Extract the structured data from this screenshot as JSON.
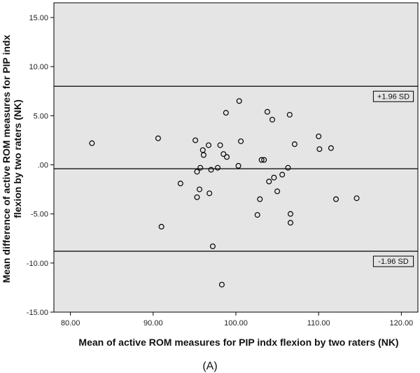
{
  "chart_data": {
    "type": "scatter",
    "xlabel": "Mean of active ROM measures for PIP indx flexion by two raters (NK)",
    "ylabel_lines": [
      "Mean difference of active ROM measures for PIP indx",
      "flexion by two raters (NK)"
    ],
    "xlim": [
      78,
      122
    ],
    "ylim": [
      -15,
      16.5
    ],
    "x_ticks": [
      80,
      90,
      100,
      110,
      120
    ],
    "x_tick_labels": [
      "80.00",
      "90.00",
      "100.00",
      "110.00",
      "120.00"
    ],
    "y_ticks": [
      -15,
      -10,
      -5,
      0,
      5,
      10,
      15
    ],
    "y_tick_labels": [
      "-15.00",
      "-10.00",
      "-5.00",
      ".00",
      "5.00",
      "10.00",
      "15.00"
    ],
    "grid": false,
    "reference_lines": [
      {
        "y": 8.0,
        "label": "+1.96 SD"
      },
      {
        "y": -0.4,
        "label": ""
      },
      {
        "y": -8.8,
        "label": "-1.96 SD"
      }
    ],
    "points": [
      {
        "x": 82.6,
        "y": 2.2
      },
      {
        "x": 90.6,
        "y": 2.7
      },
      {
        "x": 91.0,
        "y": -6.3
      },
      {
        "x": 93.3,
        "y": -1.9
      },
      {
        "x": 95.1,
        "y": 2.5
      },
      {
        "x": 95.3,
        "y": -0.7
      },
      {
        "x": 95.3,
        "y": -3.3
      },
      {
        "x": 95.6,
        "y": -2.5
      },
      {
        "x": 95.7,
        "y": -0.3
      },
      {
        "x": 96.0,
        "y": 1.5
      },
      {
        "x": 96.1,
        "y": 1.0
      },
      {
        "x": 96.7,
        "y": 2.0
      },
      {
        "x": 96.8,
        "y": -2.9
      },
      {
        "x": 97.0,
        "y": -0.5
      },
      {
        "x": 97.2,
        "y": -8.3
      },
      {
        "x": 97.8,
        "y": -0.3
      },
      {
        "x": 98.1,
        "y": 2.0
      },
      {
        "x": 98.3,
        "y": -12.2
      },
      {
        "x": 98.5,
        "y": 1.1
      },
      {
        "x": 98.8,
        "y": 5.3
      },
      {
        "x": 98.9,
        "y": 0.8
      },
      {
        "x": 100.3,
        "y": -0.1
      },
      {
        "x": 100.4,
        "y": 6.5
      },
      {
        "x": 100.6,
        "y": 2.4
      },
      {
        "x": 102.6,
        "y": -5.1
      },
      {
        "x": 102.9,
        "y": -3.5
      },
      {
        "x": 103.1,
        "y": 0.5
      },
      {
        "x": 103.4,
        "y": 0.5
      },
      {
        "x": 103.8,
        "y": 5.4
      },
      {
        "x": 104.0,
        "y": -1.7
      },
      {
        "x": 104.4,
        "y": 4.6
      },
      {
        "x": 104.6,
        "y": -1.3
      },
      {
        "x": 105.0,
        "y": -2.7
      },
      {
        "x": 105.6,
        "y": -1.0
      },
      {
        "x": 106.3,
        "y": -0.3
      },
      {
        "x": 106.5,
        "y": 5.1
      },
      {
        "x": 106.6,
        "y": -5.0
      },
      {
        "x": 106.6,
        "y": -5.9
      },
      {
        "x": 107.1,
        "y": 2.1
      },
      {
        "x": 110.0,
        "y": 2.9
      },
      {
        "x": 110.1,
        "y": 1.6
      },
      {
        "x": 111.5,
        "y": 1.7
      },
      {
        "x": 112.1,
        "y": -3.5
      },
      {
        "x": 114.6,
        "y": -3.4
      }
    ]
  },
  "caption": "(A)"
}
